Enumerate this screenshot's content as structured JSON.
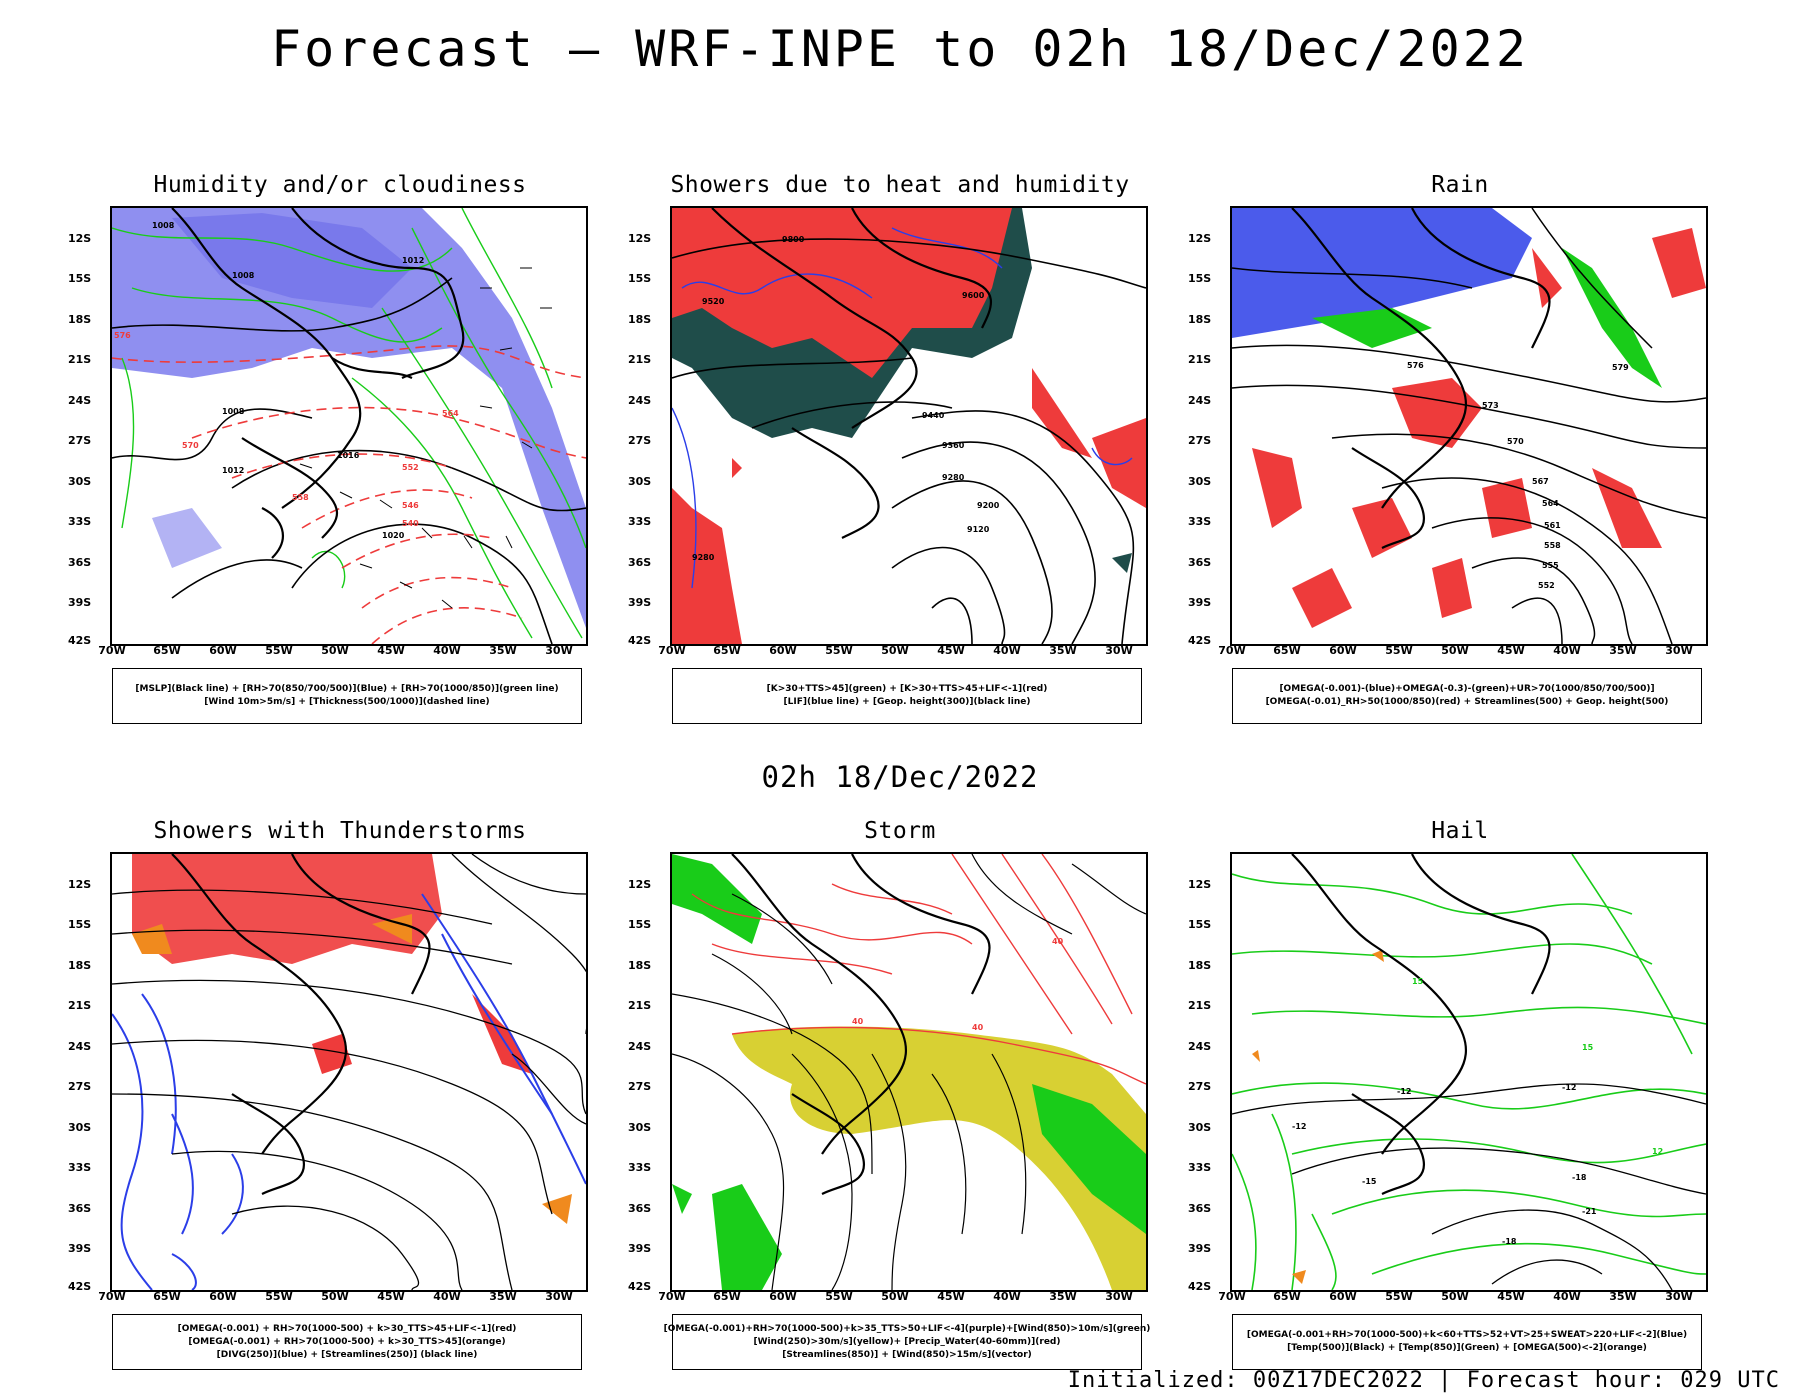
{
  "title": "Forecast — WRF-INPE to 02h 18/Dec/2022",
  "mid_title": "02h 18/Dec/2022",
  "footer": "Initialized: 00Z17DEC2022 | Forecast hour: 029 UTC",
  "axes": {
    "lat_labels": [
      "12S",
      "15S",
      "18S",
      "21S",
      "24S",
      "27S",
      "30S",
      "33S",
      "36S",
      "39S",
      "42S"
    ],
    "lon_labels": [
      "70W",
      "65W",
      "60W",
      "55W",
      "50W",
      "45W",
      "40W",
      "35W",
      "30W"
    ]
  },
  "colors": {
    "ocean_bg": "#ffffff",
    "blue": "#2b3ee8",
    "light_blue": "#8f8ff0",
    "green": "#19cc19",
    "red": "#ee3b3b",
    "dark_teal": "#1f4d4a",
    "yellow": "#d8d033",
    "orange": "#f08a1e"
  },
  "panels": [
    {
      "title": "Humidity and/or cloudiness",
      "legend": [
        "[MSLP](Black line) + [RH>70(850/700/500)](Blue) + [RH>70(1000/850)](green line)",
        "[Wind 10m>5m/s] + [Thickness(500/1000)](dashed line)"
      ],
      "contour_labels": [
        "1008",
        "1008",
        "1012",
        "1016",
        "1020",
        "1008",
        "1012",
        "576",
        "570",
        "564",
        "558",
        "552",
        "546",
        "540"
      ]
    },
    {
      "title": "Showers due to heat and humidity",
      "legend": [
        "[K>30+TTS>45](green) + [K>30+TTS>45+LIF<-1](red)",
        "[LIF](blue line) + [Geop. height(300)](black line)"
      ],
      "contour_labels": [
        "9800",
        "9600",
        "9520",
        "9440",
        "9360",
        "9280",
        "9200",
        "9120",
        "9280"
      ]
    },
    {
      "title": "Rain",
      "legend": [
        "[OMEGA(-0.001)-(blue)+OMEGA(-0.3)-(green)+UR>70(1000/850/700/500)]",
        "[OMEGA(-0.01)_RH>50(1000/850)(red) + Streamlines(500) + Geop. height(500)"
      ],
      "contour_labels": [
        "579",
        "576",
        "573",
        "570",
        "567",
        "564",
        "561",
        "558",
        "555",
        "552"
      ]
    },
    {
      "title": "Showers with Thunderstorms",
      "legend": [
        "[OMEGA(-0.001) + RH>70(1000-500) + k>30_TTS>45+LIF<-1](red)",
        "[OMEGA(-0.001) + RH>70(1000-500) + k>30_TTS>45](orange)",
        "[DIVG(250)](blue) + [Streamlines(250)] (black line)"
      ],
      "contour_labels": []
    },
    {
      "title": "Storm",
      "legend": [
        "[OMEGA(-0.001)+RH>70(1000-500)+k>35_TTS>50+LIF<-4](purple)+[Wind(850)>10m/s](green)",
        "[Wind(250)>30m/s](yellow)+ [Precip_Water(40-60mm)](red)",
        "[Streamlines(850)] + [Wind(850)>15m/s](vector)"
      ],
      "contour_labels": [
        "40",
        "40",
        "40"
      ]
    },
    {
      "title": "Hail",
      "legend": [
        "[OMEGA(-0.001+RH>70(1000-500)+k<60+TTS>52+VT>25+SWEAT>220+LIF<-2](Blue)",
        "[Temp(500)](Black) + [Temp(850)](Green) + [OMEGA(500)<-2](orange)"
      ],
      "contour_labels": [
        "-12",
        "-12",
        "-12",
        "-15",
        "-18",
        "-21",
        "-18",
        "15",
        "15",
        "12"
      ]
    }
  ]
}
